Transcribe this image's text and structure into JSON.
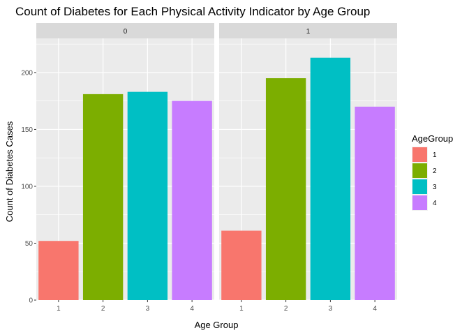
{
  "chart_data": {
    "type": "bar",
    "title": "Count of Diabetes for Each Physical Activity Indicator by Age Group",
    "xlabel": "Age Group",
    "ylabel": "Count of Diabetes Cases",
    "categories": [
      "1",
      "2",
      "3",
      "4"
    ],
    "ylim": [
      0,
      230
    ],
    "yticks": [
      0,
      50,
      100,
      150,
      200
    ],
    "grid": true,
    "facets": [
      {
        "label": "0",
        "values": [
          52,
          181,
          183,
          175
        ]
      },
      {
        "label": "1",
        "values": [
          61,
          195,
          213,
          170
        ]
      }
    ],
    "legend": {
      "title": "AgeGroup",
      "placement": "right",
      "entries": [
        "1",
        "2",
        "3",
        "4"
      ]
    },
    "colors": [
      "#F8766D",
      "#7CAE00",
      "#00BFC4",
      "#C77CFF"
    ]
  }
}
